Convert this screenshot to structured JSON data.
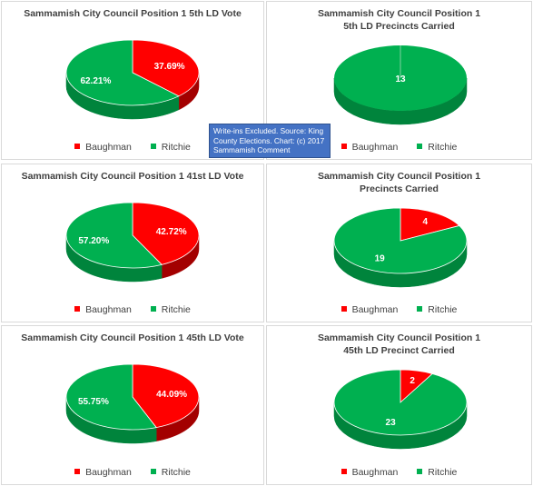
{
  "note": "Write-ins Excluded. Source: King County Elections. Chart: (c) 2017 Sammamish Comment",
  "colors": {
    "baughman": "#ff0000",
    "ritchie": "#00b050"
  },
  "chart_data": [
    {
      "type": "pie",
      "title_lines": [
        "Sammamish City Council Position 1 5th LD Vote"
      ],
      "categories": [
        "Baughman",
        "Ritchie"
      ],
      "values": [
        37.69,
        62.21
      ],
      "labels": [
        "37.69%",
        "62.21%"
      ],
      "legend": "bottom"
    },
    {
      "type": "pie",
      "title_lines": [
        "Sammamish City Council Position 1",
        "5th LD Precincts Carried"
      ],
      "categories": [
        "Baughman",
        "Ritchie"
      ],
      "values": [
        0,
        13
      ],
      "labels": [
        "",
        "13"
      ],
      "legend": "bottom"
    },
    {
      "type": "pie",
      "title_lines": [
        "Sammamish City Council Position 1 41st LD Vote"
      ],
      "categories": [
        "Baughman",
        "Ritchie"
      ],
      "values": [
        42.72,
        57.2
      ],
      "labels": [
        "42.72%",
        "57.20%"
      ],
      "legend": "bottom"
    },
    {
      "type": "pie",
      "title_lines": [
        "Sammamish City Council Position 1",
        "Precincts Carried"
      ],
      "categories": [
        "Baughman",
        "Ritchie"
      ],
      "values": [
        4,
        19
      ],
      "labels": [
        "4",
        "19"
      ],
      "legend": "bottom"
    },
    {
      "type": "pie",
      "title_lines": [
        "Sammamish City Council Position 1 45th LD Vote"
      ],
      "categories": [
        "Baughman",
        "Ritchie"
      ],
      "values": [
        44.09,
        55.75
      ],
      "labels": [
        "44.09%",
        "55.75%"
      ],
      "legend": "bottom"
    },
    {
      "type": "pie",
      "title_lines": [
        "Sammamish City Council Position 1",
        "45th LD Precinct Carried"
      ],
      "categories": [
        "Baughman",
        "Ritchie"
      ],
      "values": [
        2,
        23
      ],
      "labels": [
        "2",
        "23"
      ],
      "legend": "bottom"
    }
  ]
}
